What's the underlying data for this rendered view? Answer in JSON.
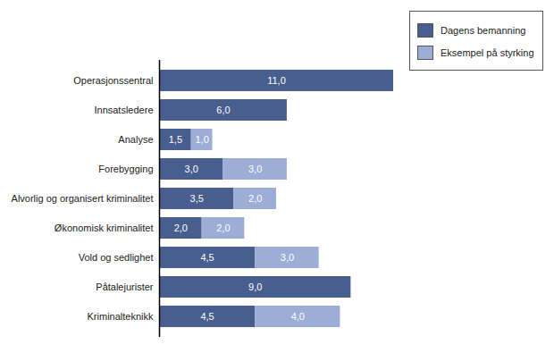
{
  "chart_data": {
    "type": "bar",
    "orientation": "horizontal",
    "stacked": true,
    "data_labels": true,
    "tick_labels": "y",
    "legend": "top-right",
    "xlim": [
      0,
      11
    ],
    "categories": [
      "Operasjonssentral",
      "Innsatsledere",
      "Analyse",
      "Forebygging",
      "Alvorlig og organisert kriminalitet",
      "Økonomisk kriminalitet",
      "Vold og sedlighet",
      "Påtalejurister",
      "Kriminalteknikk"
    ],
    "series": [
      {
        "name": "Dagens bemanning",
        "color": "#485e8e",
        "values": [
          11.0,
          6.0,
          1.5,
          3.0,
          3.5,
          2.0,
          4.5,
          9.0,
          4.5
        ],
        "value_labels": [
          "11,0",
          "6,0",
          "1,5",
          "3,0",
          "3,5",
          "2,0",
          "4,5",
          "9,0",
          "4,5"
        ]
      },
      {
        "name": "Eksempel på styrking",
        "color": "#9cadd6",
        "values": [
          null,
          null,
          1.0,
          3.0,
          2.0,
          2.0,
          3.0,
          null,
          4.0
        ],
        "value_labels": [
          null,
          null,
          "1,0",
          "3,0",
          "2,0",
          "2,0",
          "3,0",
          null,
          "4,0"
        ]
      }
    ]
  }
}
